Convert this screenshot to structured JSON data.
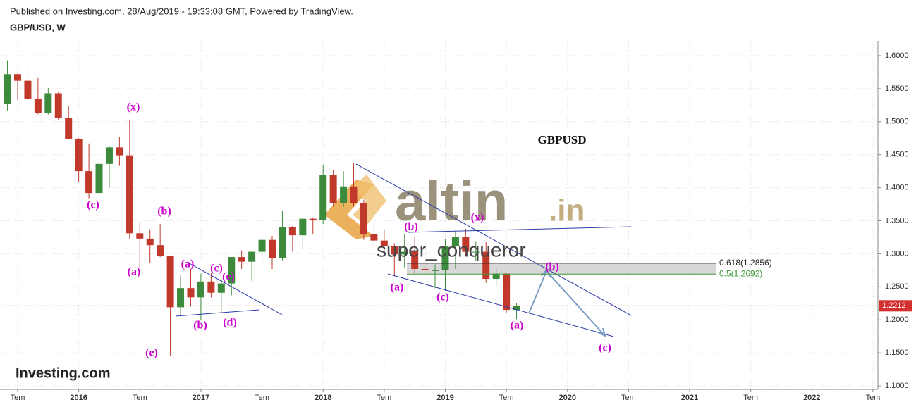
{
  "header": {
    "published": "Published on Investing.com, 28/Aug/2019 - 19:33:08 GMT, Powered by TradingView.",
    "symbol": "GBP/USD, W",
    "brand": "Investing.com"
  },
  "chart_data": {
    "type": "candlestick",
    "title": "GBPUSD",
    "x": [
      "2015-06",
      "2015-07",
      "2015-08",
      "2015-09",
      "2015-10",
      "2015-11",
      "2015-12",
      "2016-01",
      "2016-02",
      "2016-03",
      "2016-04",
      "2016-05",
      "2016-06",
      "2016-07",
      "2016-08",
      "2016-09",
      "2016-10",
      "2016-11",
      "2016-12",
      "2017-01",
      "2017-02",
      "2017-03",
      "2017-04",
      "2017-05",
      "2017-06",
      "2017-07",
      "2017-08",
      "2017-09",
      "2017-10",
      "2017-11",
      "2017-12",
      "2018-01",
      "2018-02",
      "2018-03",
      "2018-04",
      "2018-05",
      "2018-06",
      "2018-07",
      "2018-08",
      "2018-09",
      "2018-10",
      "2018-11",
      "2018-12",
      "2019-01",
      "2019-02",
      "2019-03",
      "2019-04",
      "2019-05",
      "2019-06",
      "2019-07",
      "2019-08"
    ],
    "open": [
      1.527,
      1.572,
      1.562,
      1.535,
      1.513,
      1.543,
      1.506,
      1.474,
      1.425,
      1.392,
      1.436,
      1.461,
      1.449,
      1.331,
      1.323,
      1.313,
      1.297,
      1.219,
      1.248,
      1.234,
      1.258,
      1.241,
      1.255,
      1.295,
      1.288,
      1.303,
      1.321,
      1.293,
      1.34,
      1.328,
      1.353,
      1.351,
      1.419,
      1.377,
      1.402,
      1.377,
      1.33,
      1.32,
      1.312,
      1.299,
      1.303,
      1.277,
      1.275,
      1.275,
      1.311,
      1.326,
      1.303,
      1.303,
      1.262,
      1.27,
      1.215
    ],
    "high": [
      1.593,
      1.573,
      1.582,
      1.566,
      1.551,
      1.545,
      1.524,
      1.475,
      1.467,
      1.446,
      1.463,
      1.477,
      1.502,
      1.348,
      1.337,
      1.345,
      1.297,
      1.267,
      1.277,
      1.27,
      1.271,
      1.261,
      1.295,
      1.305,
      1.303,
      1.321,
      1.327,
      1.365,
      1.342,
      1.354,
      1.355,
      1.435,
      1.427,
      1.425,
      1.438,
      1.382,
      1.347,
      1.336,
      1.316,
      1.33,
      1.326,
      1.318,
      1.284,
      1.322,
      1.335,
      1.338,
      1.319,
      1.318,
      1.278,
      1.271,
      1.225
    ],
    "low": [
      1.517,
      1.533,
      1.533,
      1.511,
      1.511,
      1.502,
      1.474,
      1.408,
      1.384,
      1.384,
      1.4,
      1.433,
      1.323,
      1.28,
      1.286,
      1.295,
      1.145,
      1.208,
      1.22,
      1.199,
      1.234,
      1.211,
      1.237,
      1.277,
      1.259,
      1.281,
      1.277,
      1.29,
      1.303,
      1.306,
      1.33,
      1.345,
      1.371,
      1.371,
      1.371,
      1.321,
      1.31,
      1.296,
      1.266,
      1.279,
      1.27,
      1.272,
      1.248,
      1.244,
      1.277,
      1.296,
      1.289,
      1.256,
      1.251,
      1.211,
      1.201
    ],
    "close": [
      1.572,
      1.562,
      1.535,
      1.513,
      1.543,
      1.506,
      1.474,
      1.425,
      1.392,
      1.436,
      1.461,
      1.449,
      1.331,
      1.323,
      1.313,
      1.297,
      1.219,
      1.248,
      1.234,
      1.258,
      1.241,
      1.255,
      1.295,
      1.288,
      1.303,
      1.321,
      1.293,
      1.34,
      1.328,
      1.353,
      1.351,
      1.419,
      1.377,
      1.402,
      1.377,
      1.33,
      1.32,
      1.312,
      1.299,
      1.303,
      1.277,
      1.275,
      1.275,
      1.311,
      1.326,
      1.303,
      1.303,
      1.262,
      1.27,
      1.215,
      1.2212
    ],
    "up_color": "#3c8a3c",
    "down_color": "#c0392b",
    "ylim": [
      1.1,
      1.6
    ],
    "yticks": [
      {
        "value": 1.1,
        "label": "1.1000"
      },
      {
        "value": 1.15,
        "label": "1.1500"
      },
      {
        "value": 1.2,
        "label": "1.2000"
      },
      {
        "value": 1.25,
        "label": "1.2500"
      },
      {
        "value": 1.3,
        "label": "1.3000"
      },
      {
        "value": 1.35,
        "label": "1.3500"
      },
      {
        "value": 1.4,
        "label": "1.4000"
      },
      {
        "value": 1.45,
        "label": "1.4500"
      },
      {
        "value": 1.5,
        "label": "1.5000"
      },
      {
        "value": 1.55,
        "label": "1.5500"
      },
      {
        "value": 1.6,
        "label": "1.6000"
      }
    ],
    "xticks": [
      {
        "value": "2015-07",
        "label": "Tem"
      },
      {
        "value": "2016-01",
        "label": "2016"
      },
      {
        "value": "2016-07",
        "label": "Tem"
      },
      {
        "value": "2017-01",
        "label": "2017"
      },
      {
        "value": "2017-07",
        "label": "Tem"
      },
      {
        "value": "2018-01",
        "label": "2018"
      },
      {
        "value": "2018-07",
        "label": "Tem"
      },
      {
        "value": "2019-01",
        "label": "2019"
      },
      {
        "value": "2019-07",
        "label": "Tem"
      },
      {
        "value": "2020-01",
        "label": "2020"
      },
      {
        "value": "2020-07",
        "label": "Tem"
      },
      {
        "value": "2021-01",
        "label": "2021"
      },
      {
        "value": "2021-07",
        "label": "Tem"
      },
      {
        "value": "2022-01",
        "label": "2022"
      },
      {
        "value": "2022-07",
        "label": "Tem"
      }
    ],
    "grid": true,
    "last_price": 1.2212,
    "fib_levels": [
      {
        "label": "0.618(1.2856)",
        "value": 1.2856,
        "color": "#222222"
      },
      {
        "label": "0.5(1.2692)",
        "value": 1.2692,
        "color": "#3c9a3c"
      }
    ],
    "wave_labels": [
      "(x)",
      "(c)",
      "(b)",
      "(a)",
      "(a)",
      "(c)",
      "(e)",
      "(b)",
      "(d)",
      "(e)",
      "(b)",
      "(x)",
      "(a)",
      "(c)",
      "(a)",
      "(b)",
      "(c)"
    ],
    "watermark": "altin",
    "watermark_suffix": ".in",
    "author": "super_conqueror"
  }
}
